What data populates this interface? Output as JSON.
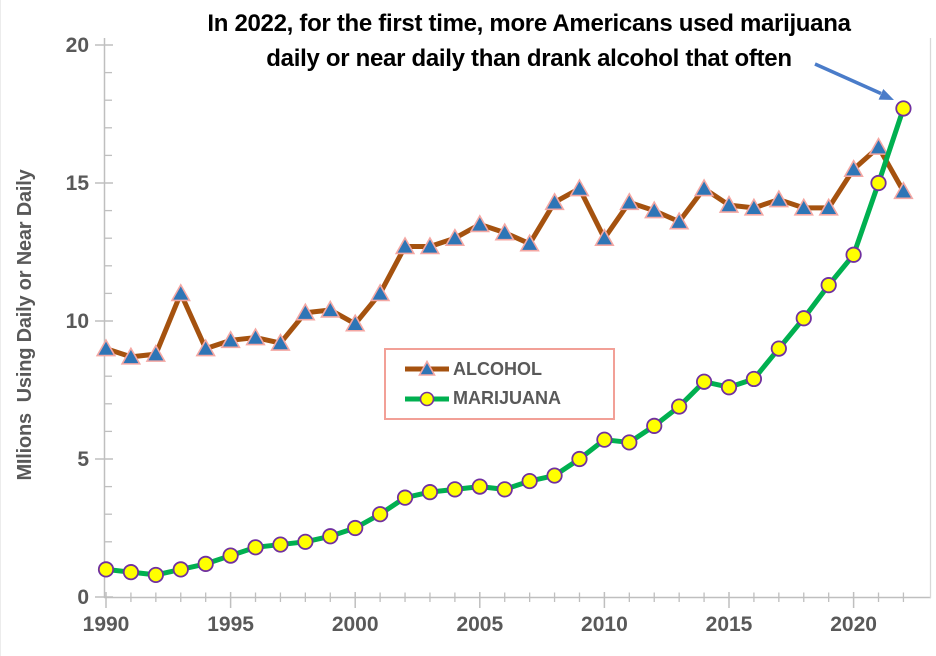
{
  "chart": {
    "title_line1": "In 2022, for the first time, more Americans used marijuana",
    "title_line2": "daily or near daily than drank alcohol that often"
  },
  "chart_data": {
    "type": "line",
    "title": "In 2022, for the first time, more Americans used marijuana daily or near daily than drank alcohol that often",
    "xlabel": "",
    "ylabel": "MIlions  Using Daily or Near Daily",
    "xlim": [
      1990,
      2022.6
    ],
    "ylim": [
      0,
      20
    ],
    "grid": false,
    "x": [
      1990,
      1991,
      1992,
      1993,
      1994,
      1995,
      1996,
      1997,
      1998,
      1999,
      2000,
      2001,
      2002,
      2003,
      2004,
      2005,
      2006,
      2007,
      2008,
      2009,
      2010,
      2011,
      2012,
      2013,
      2014,
      2015,
      2016,
      2017,
      2018,
      2019,
      2020,
      2021,
      2022
    ],
    "series": [
      {
        "name": "ALCOHOL",
        "marker": "triangle",
        "line_color": "#A5520F",
        "marker_fill": "#2E75B6",
        "marker_outline": "#F4A7A3",
        "values": [
          9.0,
          8.7,
          8.8,
          11.0,
          9.0,
          9.3,
          9.4,
          9.2,
          10.3,
          10.4,
          9.9,
          11.0,
          12.7,
          12.7,
          13.0,
          13.5,
          13.2,
          12.8,
          14.3,
          14.8,
          13.0,
          14.3,
          14.0,
          13.6,
          14.8,
          14.2,
          14.1,
          14.4,
          14.1,
          14.1,
          15.5,
          16.3,
          14.7
        ]
      },
      {
        "name": "MARIJUANA",
        "marker": "circle",
        "line_color": "#00B050",
        "marker_fill": "#FFFF00",
        "marker_outline": "#7030A0",
        "values": [
          1.0,
          0.9,
          0.8,
          1.0,
          1.2,
          1.5,
          1.8,
          1.9,
          2.0,
          2.2,
          2.5,
          3.0,
          3.6,
          3.8,
          3.9,
          4.0,
          3.9,
          4.2,
          4.4,
          5.0,
          5.7,
          5.6,
          6.2,
          6.9,
          7.8,
          7.6,
          7.9,
          9.0,
          10.1,
          11.3,
          12.4,
          15.0,
          17.7
        ]
      }
    ],
    "y_ticks_major": [
      0,
      5,
      10,
      15,
      20
    ],
    "x_ticks_major": [
      1990,
      1995,
      2000,
      2005,
      2010,
      2015,
      2020
    ],
    "minor_tick_interval": 1,
    "legend_position": "inside-middle-left",
    "annotation": {
      "type": "arrow",
      "color": "#4A7CC9",
      "target_series": "MARIJUANA",
      "target_x": 2022,
      "target_value": 17.7
    }
  },
  "style": {
    "background": "#FFFFFF",
    "title_color": "#000000",
    "axis_line_color": "#BFBFBF",
    "tick_label_color": "#595959",
    "plot_right_border_color": "#D9D9D9",
    "legend_border_color": "#F2A097"
  }
}
